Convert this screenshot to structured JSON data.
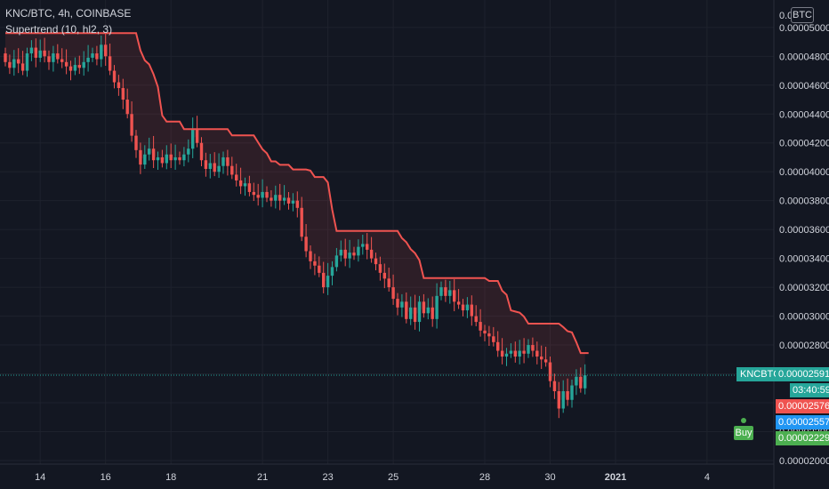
{
  "header": {
    "title": "KNC/BTC, 4h, COINBASE",
    "indicator": "Supertrend (10, hl2, 3)"
  },
  "currency_button": "BTC",
  "symbol_tag": "KNCBTC",
  "tags": {
    "last_price": "0.00002591",
    "countdown": "03:40:59",
    "supertrend_level": "0.00002576",
    "blue_level": "0.00002557",
    "buy_level": "0.00002229"
  },
  "buy_label": "Buy",
  "colors": {
    "background": "#131722",
    "grid": "#1e222d",
    "up": "#26a69a",
    "down": "#ef5350",
    "supertrend": "#ef5350",
    "blue": "#2196f3",
    "buy": "#4caf50"
  },
  "chart_data": {
    "type": "candlestick",
    "title": "KNC/BTC, 4h, COINBASE",
    "y_axis": {
      "range": [
        1.975e-05,
        5.19e-05
      ],
      "ticks": [
        "0.00002000",
        "0.00002200",
        "0.00002400",
        "0.00002600",
        "0.00002800",
        "0.00003000",
        "0.00003200",
        "0.00003400",
        "0.00003600",
        "0.00003800",
        "0.00004000",
        "0.00004200",
        "0.00004400",
        "0.00004600",
        "0.00004800",
        "0.00005000"
      ],
      "top_partial_label": "0.0"
    },
    "x_axis": {
      "ticks": [
        "14",
        "16",
        "18",
        "21",
        "23",
        "25",
        "28",
        "30",
        "2021",
        "4"
      ],
      "tick_index": [
        8,
        23,
        38,
        59,
        74,
        89,
        110,
        125,
        140,
        161
      ]
    },
    "grid": true,
    "last_price": 2.591e-05,
    "candles": [
      [
        4.82,
        4.76
      ],
      [
        4.76,
        4.72
      ],
      [
        4.72,
        4.78
      ],
      [
        4.78,
        4.75
      ],
      [
        4.75,
        4.7
      ],
      [
        4.7,
        4.82
      ],
      [
        4.82,
        4.86
      ],
      [
        4.86,
        4.79
      ],
      [
        4.79,
        4.84
      ],
      [
        4.84,
        4.8
      ],
      [
        4.8,
        4.76
      ],
      [
        4.76,
        4.82
      ],
      [
        4.82,
        4.78
      ],
      [
        4.78,
        4.76
      ],
      [
        4.76,
        4.73
      ],
      [
        4.73,
        4.7
      ],
      [
        4.7,
        4.74
      ],
      [
        4.74,
        4.72
      ],
      [
        4.72,
        4.76
      ],
      [
        4.76,
        4.79
      ],
      [
        4.79,
        4.82
      ],
      [
        4.82,
        4.78
      ],
      [
        4.78,
        4.88
      ],
      [
        4.88,
        4.8
      ],
      [
        4.8,
        4.7
      ],
      [
        4.7,
        4.62
      ],
      [
        4.62,
        4.58
      ],
      [
        4.58,
        4.5
      ],
      [
        4.5,
        4.4
      ],
      [
        4.4,
        4.25
      ],
      [
        4.25,
        4.15
      ],
      [
        4.15,
        4.05
      ],
      [
        4.05,
        4.12
      ],
      [
        4.12,
        4.16
      ],
      [
        4.16,
        4.08
      ],
      [
        4.08,
        4.1
      ],
      [
        4.1,
        4.06
      ],
      [
        4.06,
        4.12
      ],
      [
        4.12,
        4.08
      ],
      [
        4.08,
        4.1
      ],
      [
        4.1,
        4.08
      ],
      [
        4.08,
        4.12
      ],
      [
        4.12,
        4.16
      ],
      [
        4.16,
        4.3
      ],
      [
        4.3,
        4.2
      ],
      [
        4.2,
        4.08
      ],
      [
        4.08,
        4.02
      ],
      [
        4.02,
        4.06
      ],
      [
        4.06,
        4.0
      ],
      [
        4.0,
        4.04
      ],
      [
        4.04,
        4.1
      ],
      [
        4.1,
        4.04
      ],
      [
        4.04,
        3.98
      ],
      [
        3.98,
        3.94
      ],
      [
        3.94,
        3.9
      ],
      [
        3.9,
        3.92
      ],
      [
        3.92,
        3.86
      ],
      [
        3.86,
        3.84
      ],
      [
        3.84,
        3.82
      ],
      [
        3.82,
        3.86
      ],
      [
        3.86,
        3.82
      ],
      [
        3.82,
        3.8
      ],
      [
        3.8,
        3.84
      ],
      [
        3.84,
        3.8
      ],
      [
        3.8,
        3.82
      ],
      [
        3.82,
        3.78
      ],
      [
        3.78,
        3.8
      ],
      [
        3.8,
        3.75
      ],
      [
        3.75,
        3.55
      ],
      [
        3.55,
        3.45
      ],
      [
        3.45,
        3.38
      ],
      [
        3.38,
        3.35
      ],
      [
        3.35,
        3.3
      ],
      [
        3.3,
        3.2
      ],
      [
        3.2,
        3.28
      ],
      [
        3.28,
        3.34
      ],
      [
        3.34,
        3.42
      ],
      [
        3.42,
        3.46
      ],
      [
        3.46,
        3.4
      ],
      [
        3.4,
        3.44
      ],
      [
        3.44,
        3.42
      ],
      [
        3.42,
        3.48
      ],
      [
        3.48,
        3.5
      ],
      [
        3.5,
        3.46
      ],
      [
        3.46,
        3.4
      ],
      [
        3.4,
        3.36
      ],
      [
        3.36,
        3.3
      ],
      [
        3.3,
        3.26
      ],
      [
        3.26,
        3.2
      ],
      [
        3.2,
        3.12
      ],
      [
        3.12,
        3.06
      ],
      [
        3.06,
        3.1
      ],
      [
        3.1,
        2.98
      ],
      [
        2.98,
        3.06
      ],
      [
        3.06,
        2.96
      ],
      [
        2.96,
        3.1
      ],
      [
        3.1,
        3.02
      ],
      [
        3.02,
        3.06
      ],
      [
        3.06,
        2.98
      ],
      [
        2.98,
        3.14
      ],
      [
        3.14,
        3.2
      ],
      [
        3.2,
        3.14
      ],
      [
        3.14,
        3.18
      ],
      [
        3.18,
        3.1
      ],
      [
        3.1,
        3.08
      ],
      [
        3.08,
        3.04
      ],
      [
        3.04,
        3.08
      ],
      [
        3.08,
        3.0
      ],
      [
        3.0,
        2.96
      ],
      [
        2.96,
        2.9
      ],
      [
        2.9,
        2.88
      ],
      [
        2.88,
        2.86
      ],
      [
        2.86,
        2.82
      ],
      [
        2.82,
        2.76
      ],
      [
        2.76,
        2.72
      ],
      [
        2.72,
        2.74
      ],
      [
        2.74,
        2.76
      ],
      [
        2.76,
        2.72
      ],
      [
        2.72,
        2.76
      ],
      [
        2.76,
        2.74
      ],
      [
        2.74,
        2.8
      ],
      [
        2.8,
        2.76
      ],
      [
        2.76,
        2.72
      ],
      [
        2.72,
        2.7
      ],
      [
        2.7,
        2.68
      ],
      [
        2.68,
        2.55
      ],
      [
        2.55,
        2.48
      ],
      [
        2.48,
        2.36
      ],
      [
        2.36,
        2.48
      ],
      [
        2.48,
        2.42
      ],
      [
        2.42,
        2.52
      ],
      [
        2.52,
        2.58
      ],
      [
        2.58,
        2.5
      ],
      [
        2.5,
        2.59
      ]
    ]
  }
}
